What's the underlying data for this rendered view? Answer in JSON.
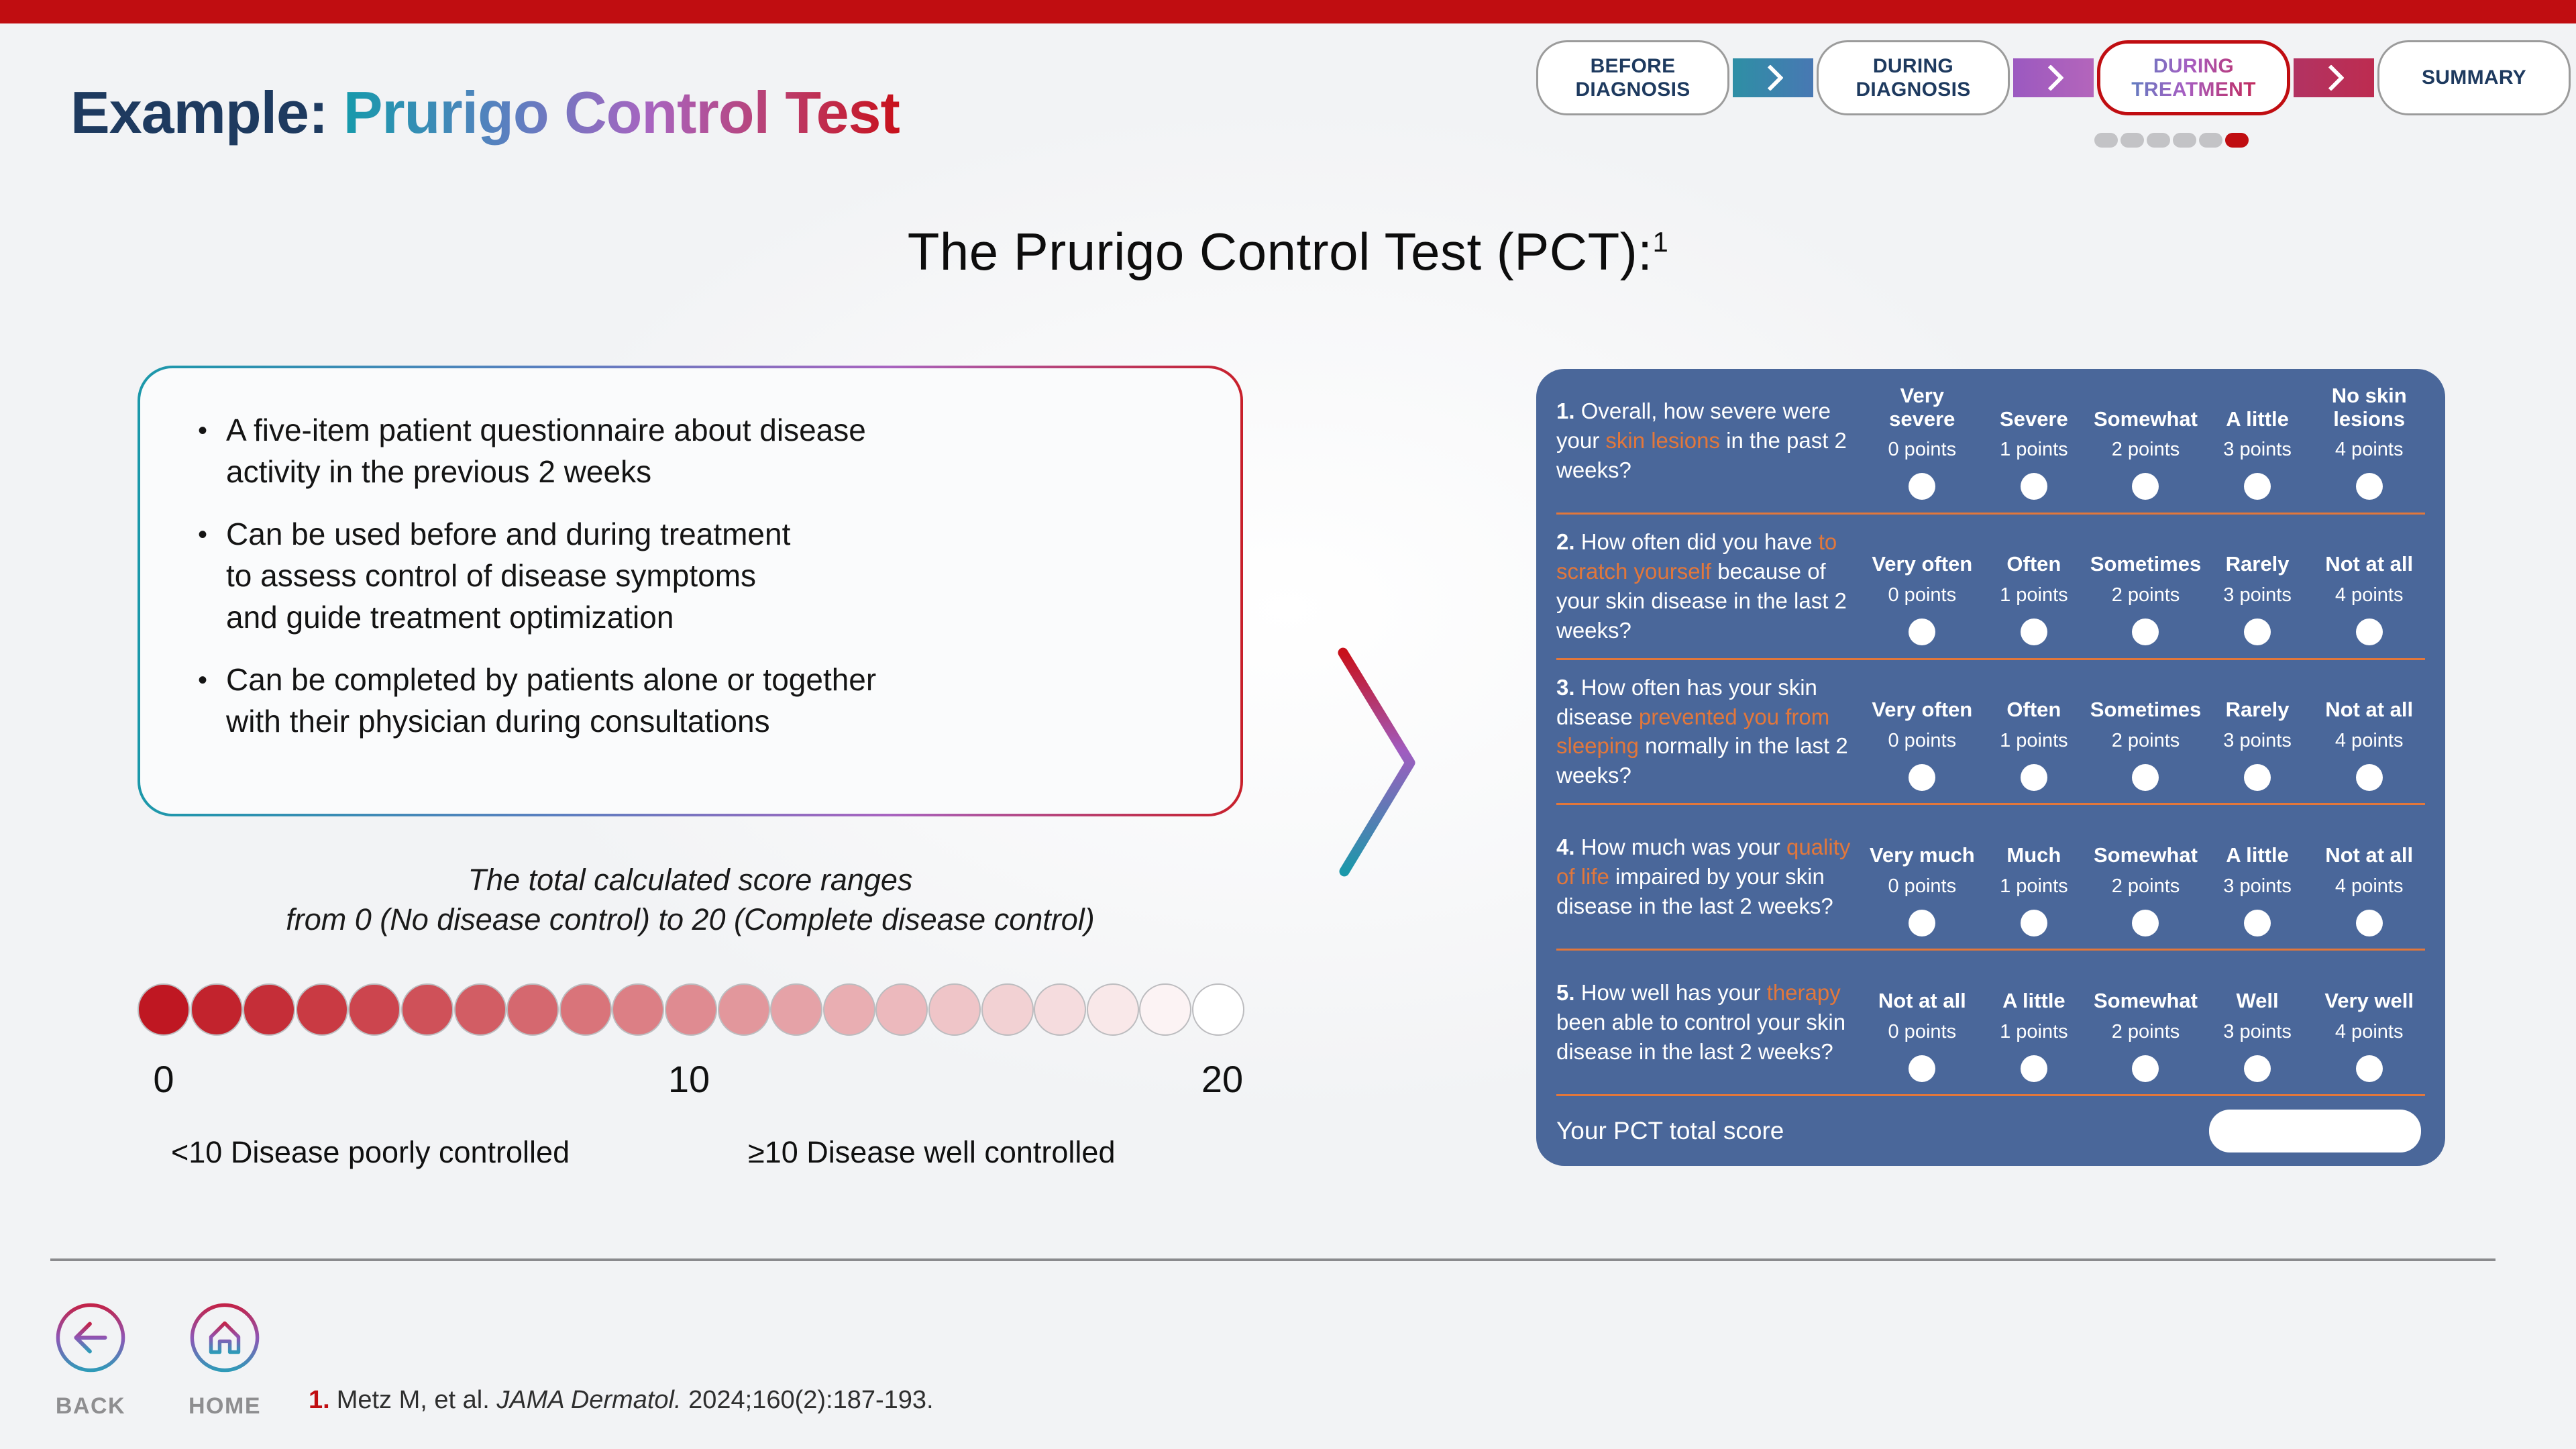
{
  "header": {
    "title_prefix": "Example:",
    "title_gradient": "Prurigo Control Test"
  },
  "nav": {
    "steps": [
      {
        "label": "BEFORE\nDIAGNOSIS",
        "active": false,
        "connector_color": "linear-gradient(90deg,#2e8fa5,#4878b3)"
      },
      {
        "label": "DURING\nDIAGNOSIS",
        "active": false,
        "connector_color": "linear-gradient(90deg,#9b59c0,#b465bb)"
      },
      {
        "label": "DURING\nTREATMENT",
        "active": true,
        "connector_color": "linear-gradient(90deg,#b23362,#bd2c50)"
      },
      {
        "label": "SUMMARY",
        "active": false,
        "connector_color": null
      }
    ],
    "dots": {
      "count": 6,
      "active_index": 5
    }
  },
  "main_title": {
    "text": "The Prurigo Control Test (PCT):",
    "superscript": "1"
  },
  "info_box": {
    "bullets": [
      "A five-item patient questionnaire about disease\nactivity in the previous 2 weeks",
      "Can be used before and during treatment\nto assess control of disease symptoms\nand guide treatment optimization",
      "Can be completed by patients alone or together\nwith their physician during consultations"
    ]
  },
  "scale": {
    "note": "The total calculated score ranges\nfrom 0 (No disease control) to 20 (Complete disease control)",
    "min_label": "0",
    "mid_label": "10",
    "max_label": "20",
    "num_circles": 21,
    "color_start": "#bf1722",
    "color_end": "#ffffff",
    "legend_left": "<10 Disease poorly controlled",
    "legend_right": "≥10 Disease well controlled"
  },
  "questionnaire": {
    "questions": [
      {
        "number": "1.",
        "segments": [
          {
            "text": "Overall, how severe were your ",
            "highlight": false
          },
          {
            "text": "skin lesions",
            "highlight": true
          },
          {
            "text": " in the past 2 weeks?",
            "highlight": false
          }
        ],
        "options": [
          {
            "label": "Very severe",
            "points": "0 points"
          },
          {
            "label": "Severe",
            "points": "1 points"
          },
          {
            "label": "Somewhat",
            "points": "2 points"
          },
          {
            "label": "A little",
            "points": "3 points"
          },
          {
            "label": "No skin lesions",
            "points": "4 points"
          }
        ]
      },
      {
        "number": "2.",
        "segments": [
          {
            "text": "How often did you have ",
            "highlight": false
          },
          {
            "text": "to scratch yourself",
            "highlight": true
          },
          {
            "text": " because of your skin disease in the last 2 weeks?",
            "highlight": false
          }
        ],
        "options": [
          {
            "label": "Very often",
            "points": "0 points"
          },
          {
            "label": "Often",
            "points": "1 points"
          },
          {
            "label": "Sometimes",
            "points": "2 points"
          },
          {
            "label": "Rarely",
            "points": "3 points"
          },
          {
            "label": "Not at all",
            "points": "4 points"
          }
        ]
      },
      {
        "number": "3.",
        "segments": [
          {
            "text": "How often has your skin disease ",
            "highlight": false
          },
          {
            "text": "prevented you from sleeping",
            "highlight": true
          },
          {
            "text": " normally in the last 2 weeks?",
            "highlight": false
          }
        ],
        "options": [
          {
            "label": "Very often",
            "points": "0 points"
          },
          {
            "label": "Often",
            "points": "1 points"
          },
          {
            "label": "Sometimes",
            "points": "2 points"
          },
          {
            "label": "Rarely",
            "points": "3 points"
          },
          {
            "label": "Not at all",
            "points": "4 points"
          }
        ]
      },
      {
        "number": "4.",
        "segments": [
          {
            "text": "How much was your ",
            "highlight": false
          },
          {
            "text": "quality of life",
            "highlight": true
          },
          {
            "text": " impaired by your skin disease in the last 2 weeks?",
            "highlight": false
          }
        ],
        "options": [
          {
            "label": "Very much",
            "points": "0 points"
          },
          {
            "label": "Much",
            "points": "1 points"
          },
          {
            "label": "Somewhat",
            "points": "2 points"
          },
          {
            "label": "A little",
            "points": "3 points"
          },
          {
            "label": "Not at all",
            "points": "4 points"
          }
        ]
      },
      {
        "number": "5.",
        "segments": [
          {
            "text": "How well has your ",
            "highlight": false
          },
          {
            "text": "therapy",
            "highlight": true
          },
          {
            "text": " been able to control your skin disease in the last 2 weeks?",
            "highlight": false
          }
        ],
        "options": [
          {
            "label": "Not at all",
            "points": "0 points"
          },
          {
            "label": "A little",
            "points": "1 points"
          },
          {
            "label": "Somewhat",
            "points": "2 points"
          },
          {
            "label": "Well",
            "points": "3 points"
          },
          {
            "label": "Very well",
            "points": "4 points"
          }
        ]
      }
    ],
    "total_label": "Your PCT total score",
    "total_value": ""
  },
  "footer": {
    "back_label": "BACK",
    "home_label": "HOME",
    "reference": {
      "number": "1.",
      "text": "Metz M, et al. ",
      "journal": "JAMA Dermatol.",
      "tail": " 2024;160(2):187-193."
    }
  },
  "colors": {
    "top_bar_red": "#c00d11",
    "navy": "#1e3a5f",
    "teal": "#1b98aa",
    "panel_blue": "#4a679a",
    "highlight_orange": "#e2773b",
    "dot_gray": "#c3c3c6",
    "label_gray": "#8e8e90"
  }
}
